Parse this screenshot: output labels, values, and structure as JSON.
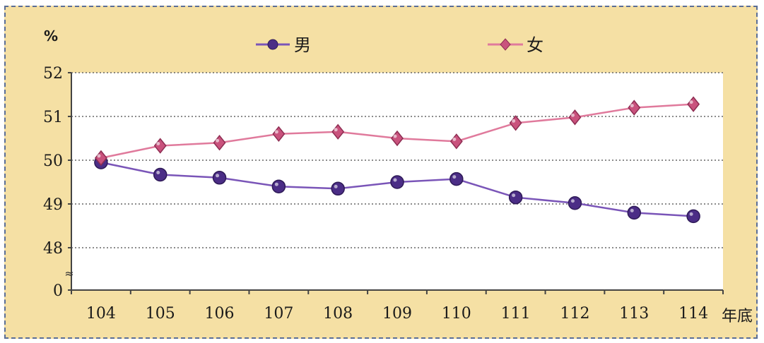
{
  "chart_data": {
    "type": "line",
    "ylabel": "%",
    "xlabel": "年底",
    "x": [
      "104",
      "105",
      "106",
      "107",
      "108",
      "109",
      "110",
      "111",
      "112",
      "113",
      "114"
    ],
    "y_ticks": [
      "52",
      "51",
      "50",
      "49",
      "48",
      "0"
    ],
    "ylim_display": [
      48,
      52
    ],
    "axis_break": true,
    "axis_break_symbol": "≈",
    "legend_position": "top",
    "grid": "horizontal-dotted",
    "series": [
      {
        "name": "男",
        "color": "#7a55b8",
        "values": [
          49.95,
          49.67,
          49.6,
          49.4,
          49.35,
          49.5,
          49.57,
          49.15,
          49.02,
          48.8,
          48.72
        ]
      },
      {
        "name": "女",
        "color": "#e07a9c",
        "values": [
          50.05,
          50.33,
          50.4,
          50.6,
          50.65,
          50.5,
          50.43,
          50.85,
          50.98,
          51.2,
          51.28
        ]
      }
    ]
  },
  "colors": {
    "background": "#f5e0a4",
    "plot_area": "#ffffff",
    "border": "#5a6e96",
    "male": "#7a55b8",
    "female": "#e07a9c"
  }
}
